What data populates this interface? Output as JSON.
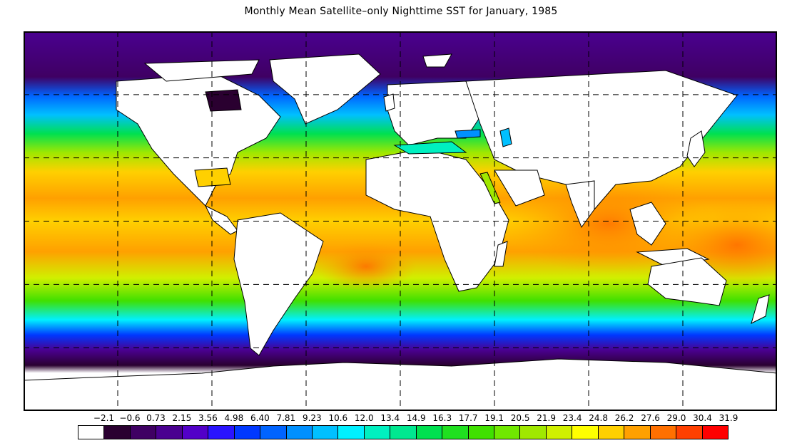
{
  "title": "Monthly Mean Satellite–only Nighttime SST for January, 1985",
  "legend": {
    "labels": [
      "−2.1",
      "−0.6",
      "0.73",
      "2.15",
      "3.56",
      "4.98",
      "6.40",
      "7.81",
      "9.23",
      "10.6",
      "12.0",
      "13.4",
      "14.9",
      "16.3",
      "17.7",
      "19.1",
      "20.5",
      "21.9",
      "23.4",
      "24.8",
      "26.2",
      "27.6",
      "29.0",
      "30.4",
      "31.9"
    ],
    "colors": [
      "#ffffff",
      "#2a0030",
      "#3f0063",
      "#4a0090",
      "#5200c8",
      "#2a14ff",
      "#0038ff",
      "#0064ff",
      "#0090ff",
      "#00c0ff",
      "#00f0ff",
      "#00f0c0",
      "#00e890",
      "#00e050",
      "#20e020",
      "#40e000",
      "#70e800",
      "#a0e800",
      "#d0f000",
      "#ffff00",
      "#ffd000",
      "#ffa000",
      "#ff7000",
      "#ff4000",
      "#ff0000"
    ]
  },
  "map": {
    "lon_range": [
      -180,
      180
    ],
    "lat_range": [
      -90,
      90
    ],
    "grid_lon": [
      -135,
      -90,
      -45,
      0,
      45,
      90,
      135
    ],
    "grid_lat": [
      -60,
      -30,
      0,
      30,
      60
    ],
    "month": "January, 1985"
  }
}
